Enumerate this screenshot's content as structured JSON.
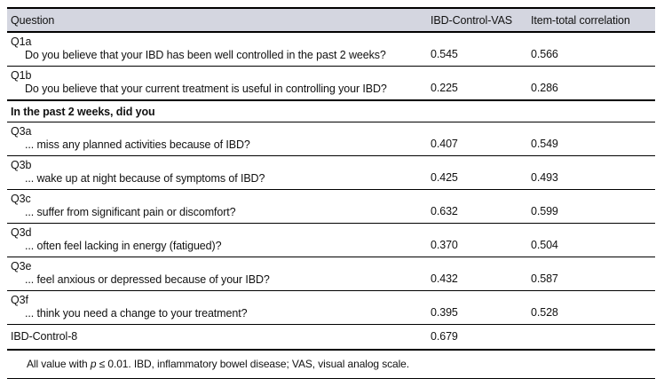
{
  "header": {
    "col_question": "Question",
    "col_vas": "IBD-Control-VAS",
    "col_itc": "Item-total correlation"
  },
  "rows": [
    {
      "id": "Q1a",
      "question": "Do you believe that your IBD has been well controlled in the past 2 weeks?",
      "vas": "0.545",
      "itc": "0.566"
    },
    {
      "id": "Q1b",
      "question": "Do you believe that your current treatment is useful in controlling your IBD?",
      "vas": "0.225",
      "itc": "0.286"
    },
    {
      "id": "Q3a",
      "question": "... miss any planned activities because of IBD?",
      "vas": "0.407",
      "itc": "0.549"
    },
    {
      "id": "Q3b",
      "question": "... wake up at night because of symptoms of IBD?",
      "vas": "0.425",
      "itc": "0.493"
    },
    {
      "id": "Q3c",
      "question": "... suffer from significant pain or discomfort?",
      "vas": "0.632",
      "itc": "0.599"
    },
    {
      "id": "Q3d",
      "question": "... often feel lacking in energy (fatigued)?",
      "vas": "0.370",
      "itc": "0.504"
    },
    {
      "id": "Q3e",
      "question": "... feel anxious or depressed because of your IBD?",
      "vas": "0.432",
      "itc": "0.587"
    },
    {
      "id": "Q3f",
      "question": "... think you need a change to your treatment?",
      "vas": "0.395",
      "itc": "0.528"
    }
  ],
  "section_header": "In the past 2 weeks, did you",
  "total_row": {
    "label": "IBD-Control-8",
    "vas": "0.679",
    "itc": ""
  },
  "footnote": {
    "prefix": "All value with ",
    "p": "p",
    "suffix": " ≤ 0.01. IBD, inflammatory bowel disease; VAS, visual analog scale."
  },
  "colors": {
    "header_background": "#d4d6e0",
    "rule": "#000000",
    "text": "#111111"
  }
}
